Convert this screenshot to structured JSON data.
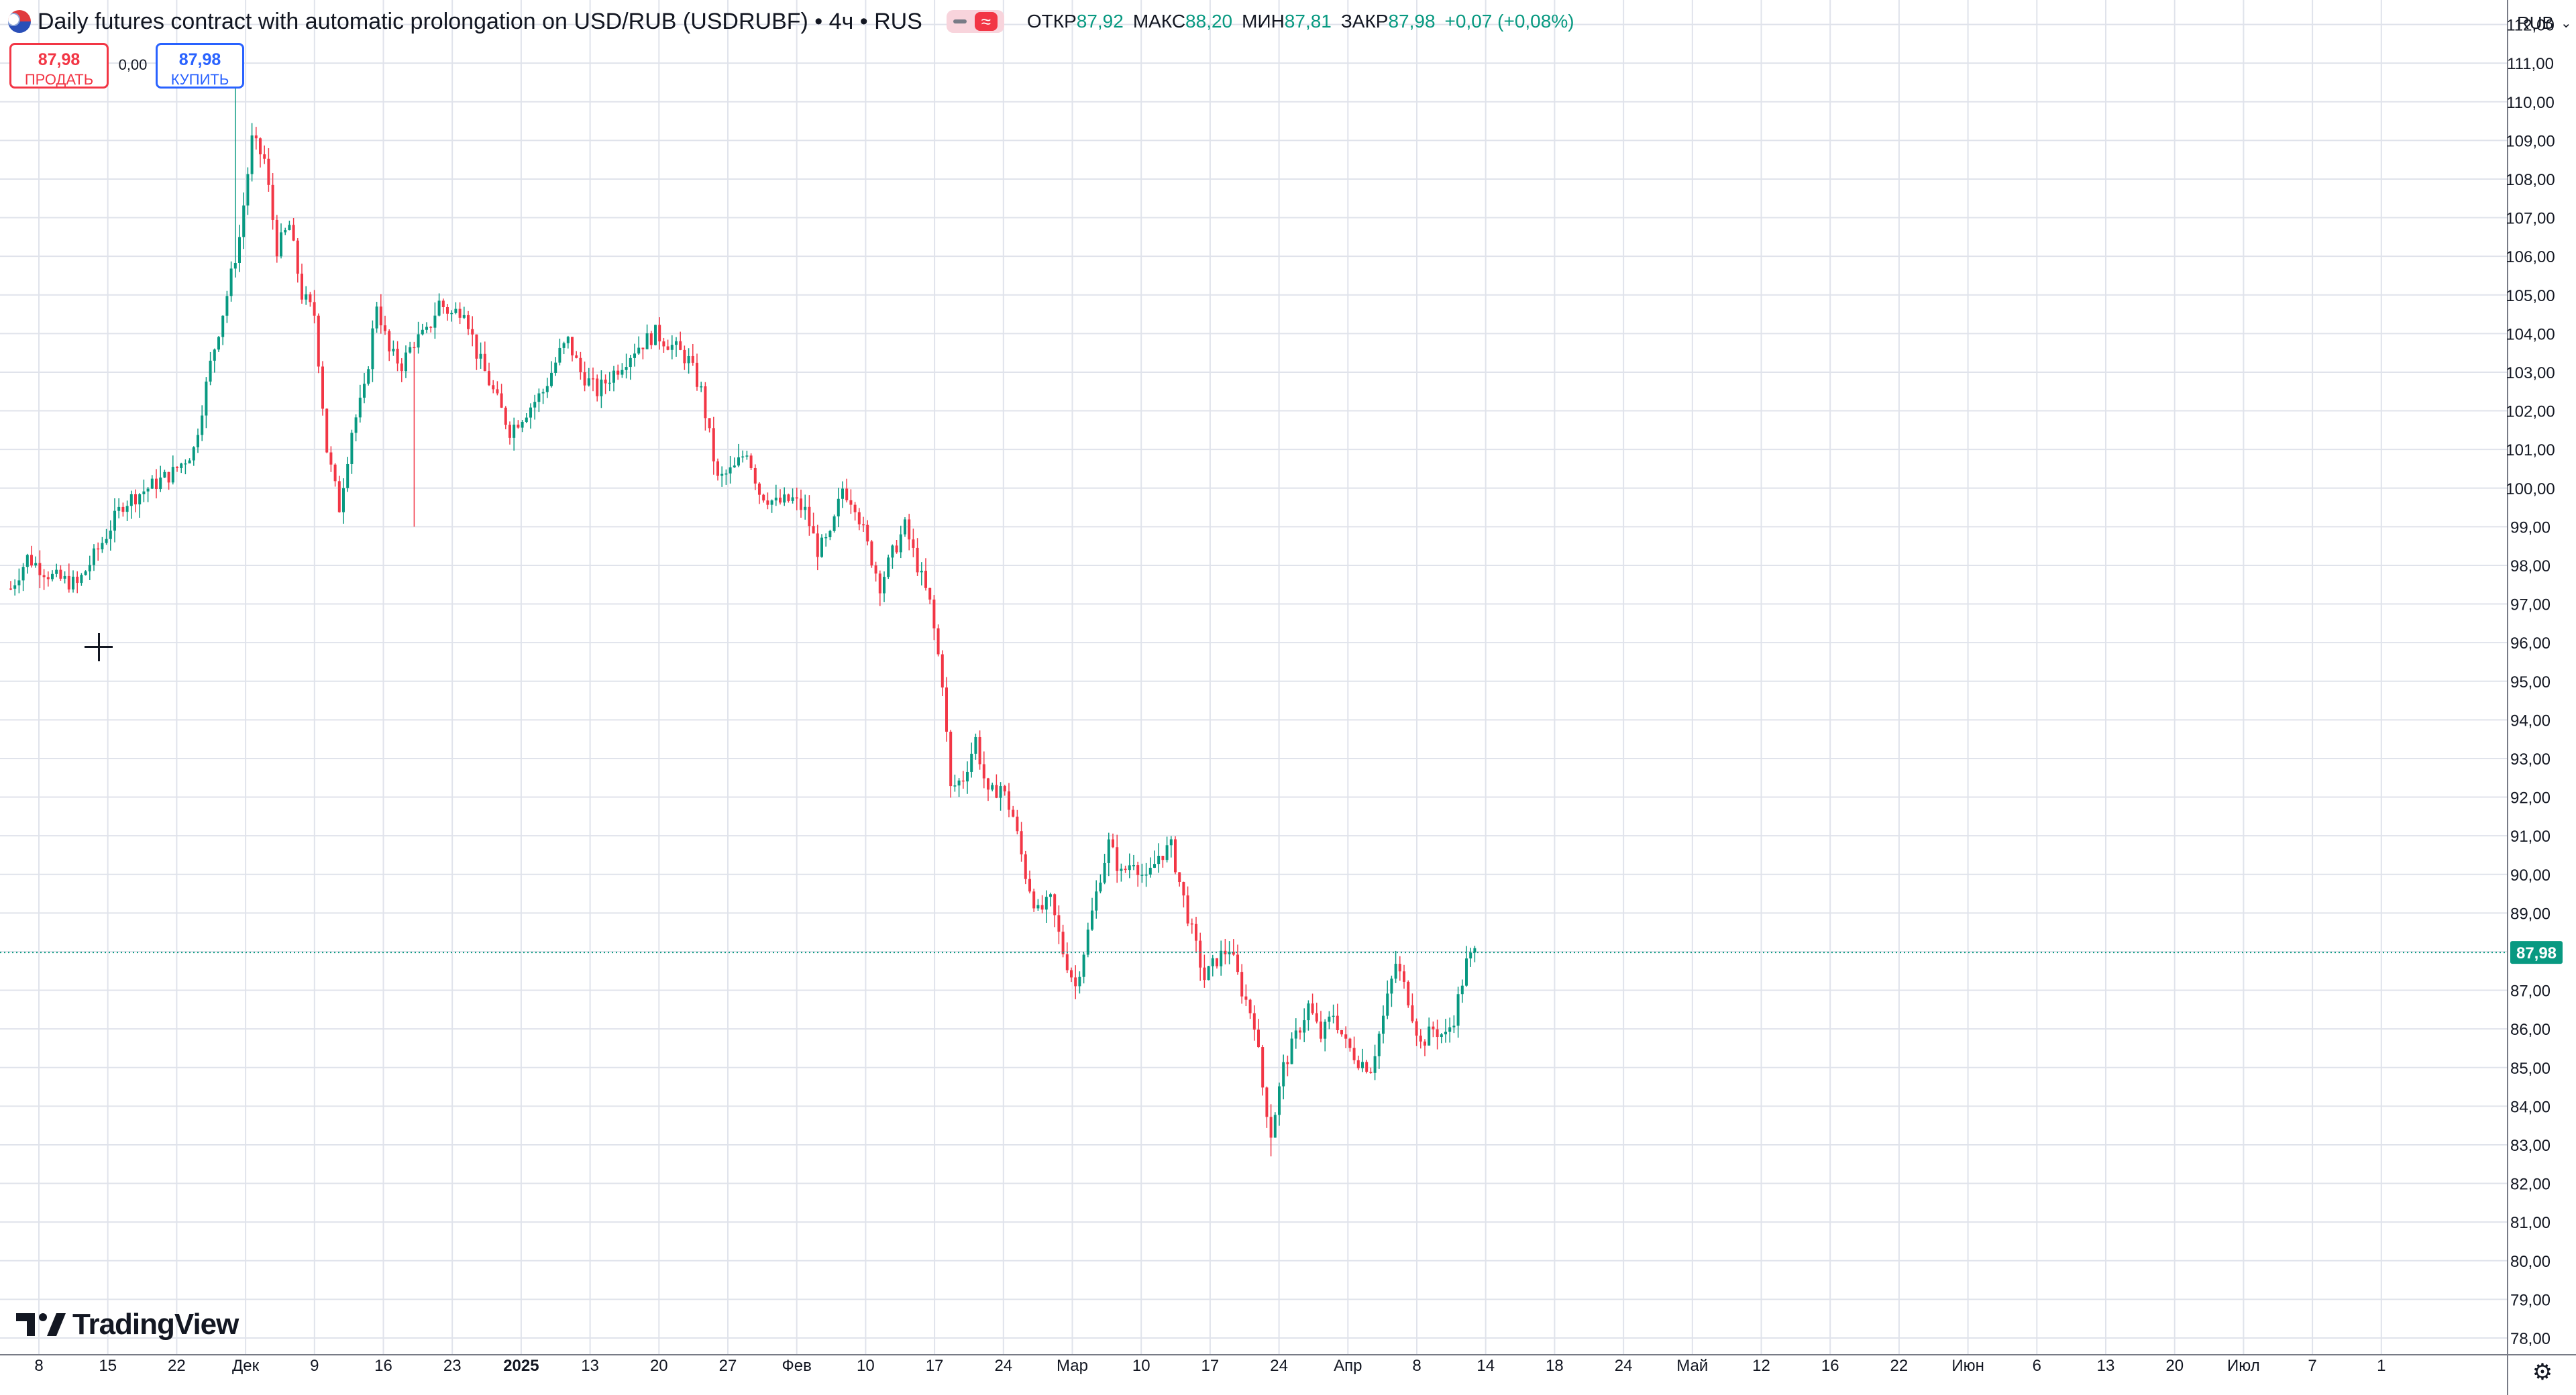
{
  "header": {
    "title": "Daily futures contract with automatic prolongation on USD/RUB (USDRUBF) • 4ч • RUS",
    "ohlc": [
      {
        "label": "ОТКР",
        "value": "87,92"
      },
      {
        "label": "МАКС",
        "value": "88,20"
      },
      {
        "label": "МИН",
        "value": "87,81"
      },
      {
        "label": "ЗАКР",
        "value": "87,98"
      }
    ],
    "change": "+0,07 (+0,08%)",
    "approx_glyph": "≈"
  },
  "trade": {
    "sell_price": "87,98",
    "sell_label": "ПРОДАТЬ",
    "spread": "0,00",
    "buy_price": "87,98",
    "buy_label": "КУПИТЬ"
  },
  "price_scale": {
    "currency": "RUB",
    "chevron": "⌄",
    "last_price_label": "87,98"
  },
  "branding": {
    "name": "TradingView"
  },
  "icons": {
    "settings": "⚙"
  },
  "colors": {
    "up": "#089981",
    "down": "#f23645",
    "grid": "#e0e3eb",
    "last_price_line": "#089981",
    "text": "#131722"
  },
  "chart_data": {
    "type": "candlestick",
    "title": "Daily futures contract with automatic prolongation on USD/RUB (USDRUBF)",
    "timeframe": "4ч",
    "ylim": [
      77.6,
      112.6
    ],
    "y_ticks": [
      "78,00",
      "79,00",
      "80,00",
      "81,00",
      "82,00",
      "83,00",
      "84,00",
      "85,00",
      "86,00",
      "87,00",
      "88,00",
      "89,00",
      "90,00",
      "91,00",
      "92,00",
      "93,00",
      "94,00",
      "95,00",
      "96,00",
      "97,00",
      "98,00",
      "99,00",
      "100,00",
      "101,00",
      "102,00",
      "103,00",
      "104,00",
      "105,00",
      "106,00",
      "107,00",
      "108,00",
      "109,00",
      "110,00",
      "111,00",
      "112,00"
    ],
    "x_ticks": [
      {
        "label": "8",
        "bold": false
      },
      {
        "label": "15",
        "bold": false
      },
      {
        "label": "22",
        "bold": false
      },
      {
        "label": "Дек",
        "bold": false
      },
      {
        "label": "9",
        "bold": false
      },
      {
        "label": "16",
        "bold": false
      },
      {
        "label": "23",
        "bold": false
      },
      {
        "label": "2025",
        "bold": true
      },
      {
        "label": "13",
        "bold": false
      },
      {
        "label": "20",
        "bold": false
      },
      {
        "label": "27",
        "bold": false
      },
      {
        "label": "Фев",
        "bold": false
      },
      {
        "label": "10",
        "bold": false
      },
      {
        "label": "17",
        "bold": false
      },
      {
        "label": "24",
        "bold": false
      },
      {
        "label": "Мар",
        "bold": false
      },
      {
        "label": "10",
        "bold": false
      },
      {
        "label": "17",
        "bold": false
      },
      {
        "label": "24",
        "bold": false
      },
      {
        "label": "Апр",
        "bold": false
      },
      {
        "label": "8",
        "bold": false
      },
      {
        "label": "14",
        "bold": false
      },
      {
        "label": "18",
        "bold": false
      },
      {
        "label": "24",
        "bold": false
      },
      {
        "label": "Май",
        "bold": false
      },
      {
        "label": "12",
        "bold": false
      },
      {
        "label": "16",
        "bold": false
      },
      {
        "label": "22",
        "bold": false
      },
      {
        "label": "Июн",
        "bold": false
      },
      {
        "label": "6",
        "bold": false
      },
      {
        "label": "13",
        "bold": false
      },
      {
        "label": "20",
        "bold": false
      },
      {
        "label": "Июл",
        "bold": false
      },
      {
        "label": "7",
        "bold": false
      },
      {
        "label": "1",
        "bold": false
      }
    ],
    "last_price": 87.98,
    "price_path": [
      [
        0,
        97.4
      ],
      [
        4,
        98.2
      ],
      [
        10,
        97.7
      ],
      [
        16,
        97.5
      ],
      [
        22,
        98.6
      ],
      [
        27,
        99.6
      ],
      [
        33,
        100.0
      ],
      [
        39,
        100.4
      ],
      [
        44,
        101.0
      ],
      [
        48,
        103.2
      ],
      [
        52,
        105.0
      ],
      [
        55,
        106.5
      ],
      [
        58,
        109.0
      ],
      [
        61,
        108.5
      ],
      [
        64,
        106.2
      ],
      [
        67,
        106.8
      ],
      [
        70,
        105.0
      ],
      [
        73,
        104.5
      ],
      [
        76,
        101.0
      ],
      [
        79,
        99.5
      ],
      [
        82,
        101.5
      ],
      [
        85,
        102.5
      ],
      [
        88,
        104.8
      ],
      [
        91,
        103.5
      ],
      [
        94,
        103.2
      ],
      [
        97,
        103.8
      ],
      [
        100,
        104.0
      ],
      [
        103,
        104.8
      ],
      [
        106,
        104.5
      ],
      [
        109,
        104.7
      ],
      [
        112,
        103.5
      ],
      [
        116,
        102.5
      ],
      [
        120,
        101.5
      ],
      [
        124,
        102.0
      ],
      [
        128,
        102.5
      ],
      [
        132,
        103.5
      ],
      [
        134,
        103.8
      ],
      [
        137,
        103.0
      ],
      [
        141,
        102.5
      ],
      [
        145,
        103.0
      ],
      [
        150,
        103.6
      ],
      [
        155,
        104.0
      ],
      [
        160,
        103.6
      ],
      [
        163,
        103.3
      ],
      [
        166,
        102.5
      ],
      [
        170,
        100.2
      ],
      [
        174,
        100.5
      ],
      [
        177,
        101.0
      ],
      [
        180,
        99.9
      ],
      [
        184,
        99.6
      ],
      [
        188,
        99.7
      ],
      [
        191,
        99.4
      ],
      [
        194,
        98.4
      ],
      [
        197,
        98.7
      ],
      [
        200,
        100.0
      ],
      [
        203,
        99.6
      ],
      [
        206,
        98.5
      ],
      [
        209,
        97.5
      ],
      [
        212,
        98.3
      ],
      [
        215,
        99.0
      ],
      [
        218,
        98.0
      ],
      [
        221,
        97.0
      ],
      [
        224,
        95.0
      ],
      [
        226,
        92.2
      ],
      [
        229,
        92.5
      ],
      [
        232,
        93.5
      ],
      [
        235,
        92.0
      ],
      [
        238,
        92.3
      ],
      [
        241,
        91.5
      ],
      [
        244,
        90.0
      ],
      [
        247,
        89.0
      ],
      [
        250,
        89.3
      ],
      [
        253,
        88.0
      ],
      [
        256,
        87.1
      ],
      [
        259,
        88.5
      ],
      [
        262,
        90.0
      ],
      [
        264,
        90.8
      ],
      [
        267,
        90.0
      ],
      [
        270,
        90.4
      ],
      [
        273,
        89.8
      ],
      [
        276,
        90.5
      ],
      [
        279,
        90.7
      ],
      [
        281,
        89.8
      ],
      [
        284,
        88.5
      ],
      [
        287,
        87.3
      ],
      [
        290,
        87.8
      ],
      [
        293,
        88.1
      ],
      [
        296,
        87.0
      ],
      [
        299,
        86.2
      ],
      [
        301,
        84.5
      ],
      [
        303,
        83.3
      ],
      [
        306,
        85.0
      ],
      [
        309,
        85.8
      ],
      [
        312,
        86.6
      ],
      [
        315,
        85.8
      ],
      [
        318,
        86.4
      ],
      [
        321,
        85.6
      ],
      [
        324,
        85.2
      ],
      [
        327,
        85.0
      ],
      [
        330,
        86.3
      ],
      [
        333,
        87.7
      ],
      [
        336,
        86.8
      ],
      [
        339,
        85.6
      ],
      [
        342,
        86.0
      ],
      [
        345,
        85.8
      ],
      [
        347,
        86.3
      ],
      [
        350,
        87.7
      ],
      [
        352,
        87.98
      ]
    ],
    "notable_wicks": [
      {
        "i": 54,
        "high": 111.0
      },
      {
        "i": 97,
        "low": 99.0
      },
      {
        "i": 303,
        "low": 82.7
      }
    ]
  }
}
